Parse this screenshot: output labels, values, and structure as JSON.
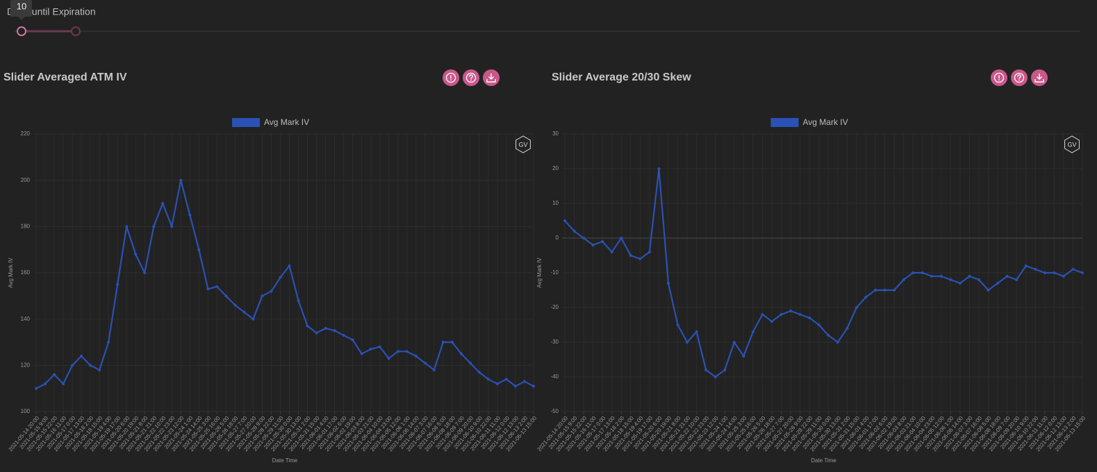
{
  "slider": {
    "label": "Days until Expiration",
    "value": 10
  },
  "chart_data": [
    {
      "type": "line",
      "title": "Slider Averaged ATM IV",
      "logo": "GV",
      "xlabel": "Date Time",
      "ylabel": "Avg Mark IV",
      "grid": true,
      "categories": [
        "2021-05-14 20:00",
        "2021-05-15 9:00",
        "2021-05-15 22:00",
        "2021-05-16 11:00",
        "2021-05-17 0:00",
        "2021-05-17 13:00",
        "2021-05-18 2:00",
        "2021-05-18 15:00",
        "2021-05-19 4:00",
        "2021-05-19 17:00",
        "2021-05-20 6:00",
        "2021-05-20 19:00",
        "2021-05-21 8:00",
        "2021-05-21 21:00",
        "2021-05-22 10:00",
        "2021-05-22 23:00",
        "2021-05-23 12:00",
        "2021-05-24 1:00",
        "2021-05-24 14:00",
        "2021-05-25 3:00",
        "2021-05-25 16:00",
        "2021-05-26 5:00",
        "2021-05-26 18:00",
        "2021-05-27 7:00",
        "2021-05-27 20:00",
        "2021-05-28 9:00",
        "2021-05-28 22:00",
        "2021-05-29 11:00",
        "2021-05-30 0:00",
        "2021-05-30 13:00",
        "2021-05-31 2:00",
        "2021-05-31 15:00",
        "2021-06-01 4:00",
        "2021-06-01 17:00",
        "2021-06-02 6:00",
        "2021-06-02 19:00",
        "2021-06-03 8:00",
        "2021-06-03 21:00",
        "2021-06-04 10:00",
        "2021-06-04 23:00",
        "2021-06-05 12:00",
        "2021-06-06 1:00",
        "2021-06-06 14:00",
        "2021-06-07 3:00",
        "2021-06-07 16:00",
        "2021-06-08 5:00",
        "2021-06-08 18:00",
        "2021-06-09 7:00",
        "2021-06-09 20:00",
        "2021-06-10 9:00",
        "2021-06-10 22:00",
        "2021-06-11 11:00",
        "2021-06-12 0:00",
        "2021-06-12 13:00",
        "2021-06-13 2:00",
        "2021-06-13 15:00"
      ],
      "series": [
        {
          "name": "Avg Mark IV",
          "color": "#2a52b4",
          "values": [
            110,
            112,
            116,
            112,
            120,
            124,
            120,
            118,
            130,
            155,
            180,
            168,
            160,
            180,
            190,
            180,
            200,
            185,
            170,
            153,
            154,
            150,
            146,
            143,
            140,
            150,
            152,
            158,
            163,
            148,
            137,
            134,
            136,
            135,
            133,
            131,
            125,
            127,
            128,
            123,
            126,
            126,
            124,
            121,
            118,
            130,
            130,
            125,
            121,
            117,
            114,
            112,
            114,
            111,
            113,
            111
          ]
        }
      ],
      "ylim": [
        100,
        220
      ],
      "yticks": [
        100,
        120,
        140,
        160,
        180,
        200,
        220
      ]
    },
    {
      "type": "line",
      "title": "Slider Average 20/30 Skew",
      "logo": "GV",
      "xlabel": "Date Time",
      "ylabel": "Avg Mark IV",
      "grid": true,
      "categories": [
        "2021-05-14 20:00",
        "2021-05-15 9:00",
        "2021-05-15 22:00",
        "2021-05-16 11:00",
        "2021-05-17 0:00",
        "2021-05-17 13:00",
        "2021-05-18 2:00",
        "2021-05-18 15:00",
        "2021-05-19 4:00",
        "2021-05-19 17:00",
        "2021-05-20 6:00",
        "2021-05-20 19:00",
        "2021-05-21 8:00",
        "2021-05-21 21:00",
        "2021-05-22 10:00",
        "2021-05-22 23:00",
        "2021-05-23 12:00",
        "2021-05-24 1:00",
        "2021-05-24 14:00",
        "2021-05-25 3:00",
        "2021-05-25 16:00",
        "2021-05-26 5:00",
        "2021-05-26 18:00",
        "2021-05-27 7:00",
        "2021-05-27 20:00",
        "2021-05-28 9:00",
        "2021-05-28 22:00",
        "2021-05-29 11:00",
        "2021-05-30 0:00",
        "2021-05-30 13:00",
        "2021-05-31 2:00",
        "2021-05-31 15:00",
        "2021-06-01 4:00",
        "2021-06-01 17:00",
        "2021-06-02 6:00",
        "2021-06-02 19:00",
        "2021-06-03 8:00",
        "2021-06-03 21:00",
        "2021-06-04 10:00",
        "2021-06-04 23:00",
        "2021-06-05 12:00",
        "2021-06-06 1:00",
        "2021-06-06 14:00",
        "2021-06-07 3:00",
        "2021-06-07 16:00",
        "2021-06-08 5:00",
        "2021-06-08 18:00",
        "2021-06-09 7:00",
        "2021-06-09 20:00",
        "2021-06-10 9:00",
        "2021-06-10 22:00",
        "2021-06-11 11:00",
        "2021-06-12 0:00",
        "2021-06-12 13:00",
        "2021-06-13 2:00",
        "2021-06-13 15:00"
      ],
      "series": [
        {
          "name": "Avg Mark IV",
          "color": "#2a52b4",
          "values": [
            5,
            2,
            0,
            -2,
            -1,
            -4,
            0,
            -5,
            -6,
            -4,
            20,
            -13,
            -25,
            -30,
            -27,
            -38,
            -40,
            -38,
            -30,
            -34,
            -27,
            -22,
            -24,
            -22,
            -21,
            -22,
            -23,
            -25,
            -28,
            -30,
            -26,
            -20,
            -17,
            -15,
            -15,
            -15,
            -12,
            -10,
            -10,
            -11,
            -11,
            -12,
            -13,
            -11,
            -12,
            -15,
            -13,
            -11,
            -12,
            -8,
            -9,
            -10,
            -10,
            -11,
            -9,
            -10
          ]
        }
      ],
      "ylim": [
        -50,
        30
      ],
      "yticks": [
        -50,
        -40,
        -30,
        -20,
        -10,
        0,
        10,
        20,
        30
      ]
    }
  ]
}
